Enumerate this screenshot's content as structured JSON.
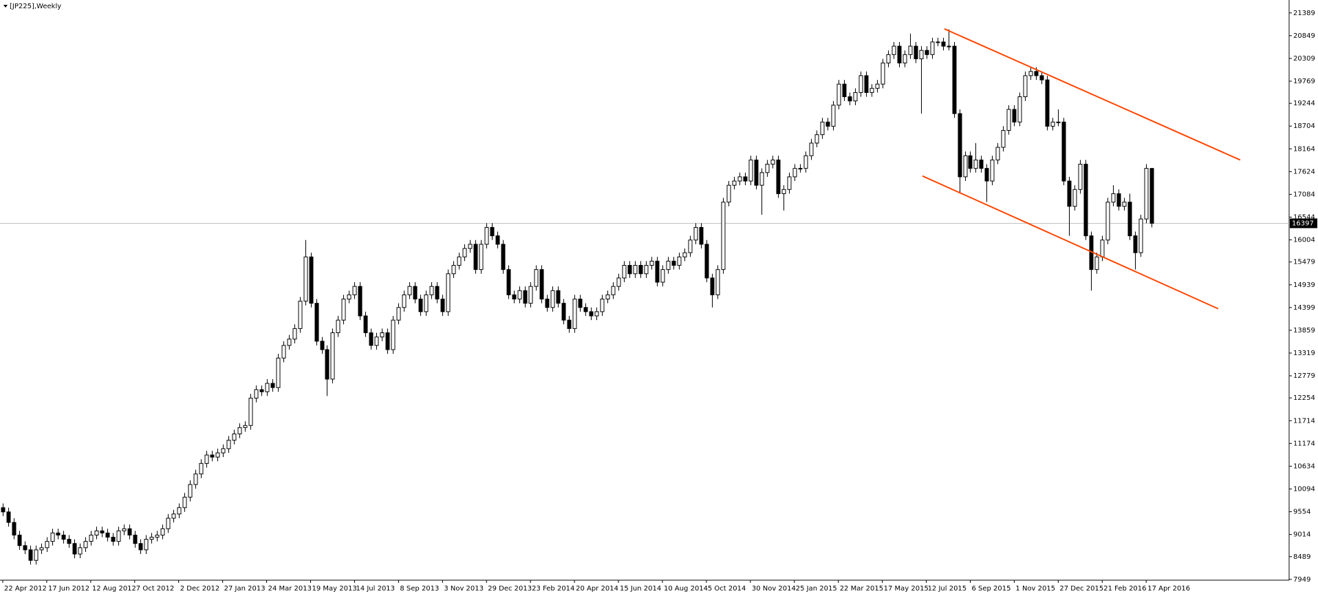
{
  "chart_data": {
    "type": "candlestick",
    "title": "[JP225],Weekly",
    "xlim": [
      -0.5,
      234
    ],
    "ylim": [
      7930,
      21630
    ],
    "yticks": [
      21389,
      20849,
      20309,
      19769,
      19244,
      18704,
      18164,
      17624,
      17084,
      16544,
      16004,
      15479,
      14939,
      14399,
      13859,
      13319,
      12779,
      12254,
      11714,
      11174,
      10634,
      10094,
      9554,
      9014,
      8489,
      7949
    ],
    "xticks": [
      {
        "value": 0,
        "label": "22 Apr 2012"
      },
      {
        "value": 8,
        "label": "17 Jun 2012"
      },
      {
        "value": 16,
        "label": "12 Aug 2012"
      },
      {
        "value": 24,
        "label": "7 Oct 2012"
      },
      {
        "value": 32,
        "label": "2 Dec 2012"
      },
      {
        "value": 40,
        "label": "27 Jan 2013"
      },
      {
        "value": 48,
        "label": "24 Mar 2013"
      },
      {
        "value": 56,
        "label": "19 May 2013"
      },
      {
        "value": 64,
        "label": "14 Jul 2013"
      },
      {
        "value": 72,
        "label": "8 Sep 2013"
      },
      {
        "value": 80,
        "label": "3 Nov 2013"
      },
      {
        "value": 88,
        "label": "29 Dec 2013"
      },
      {
        "value": 96,
        "label": "23 Feb 2014"
      },
      {
        "value": 104,
        "label": "20 Apr 2014"
      },
      {
        "value": 112,
        "label": "15 Jun 2014"
      },
      {
        "value": 120,
        "label": "10 Aug 2014"
      },
      {
        "value": 128,
        "label": "5 Oct 2014"
      },
      {
        "value": 136,
        "label": "30 Nov 2014"
      },
      {
        "value": 144,
        "label": "25 Jan 2015"
      },
      {
        "value": 152,
        "label": "22 Mar 2015"
      },
      {
        "value": 160,
        "label": "17 May 2015"
      },
      {
        "value": 168,
        "label": "12 Jul 2015"
      },
      {
        "value": 176,
        "label": "6 Sep 2015"
      },
      {
        "value": 184,
        "label": "1 Nov 2015"
      },
      {
        "value": 192,
        "label": "27 Dec 2015"
      },
      {
        "value": 200,
        "label": "21 Feb 2016"
      },
      {
        "value": 208,
        "label": "17 Apr 2016"
      }
    ],
    "up_color": "#ffffff",
    "down_color": "#000000",
    "outline_color": "#000000",
    "current_price": 16397,
    "current_price_line_color": "#c0c0c0",
    "trendlines": [
      {
        "color": "#ff4500",
        "points": [
          [
            171.3,
            21010
          ],
          [
            225.1,
            17900
          ]
        ]
      },
      {
        "color": "#ff4500",
        "points": [
          [
            167.3,
            17520
          ],
          [
            221.1,
            14370
          ]
        ]
      }
    ],
    "candles": [
      [
        9650,
        9750,
        9450,
        9550
      ],
      [
        9550,
        9650,
        9200,
        9300
      ],
      [
        9300,
        9400,
        8900,
        9000
      ],
      [
        9000,
        9100,
        8650,
        8750
      ],
      [
        8750,
        8850,
        8550,
        8650
      ],
      [
        8650,
        8750,
        8300,
        8400
      ],
      [
        8400,
        8750,
        8300,
        8650
      ],
      [
        8650,
        8800,
        8550,
        8700
      ],
      [
        8700,
        8950,
        8600,
        8850
      ],
      [
        8850,
        9150,
        8750,
        9050
      ],
      [
        9050,
        9150,
        8900,
        9000
      ],
      [
        9000,
        9100,
        8800,
        8900
      ],
      [
        8900,
        9000,
        8700,
        8800
      ],
      [
        8800,
        8900,
        8450,
        8550
      ],
      [
        8550,
        8800,
        8450,
        8700
      ],
      [
        8700,
        8950,
        8600,
        8850
      ],
      [
        8850,
        9100,
        8750,
        9000
      ],
      [
        9000,
        9200,
        8900,
        9100
      ],
      [
        9100,
        9200,
        8950,
        9050
      ],
      [
        9050,
        9150,
        8850,
        8950
      ],
      [
        8950,
        9050,
        8750,
        8850
      ],
      [
        8850,
        9200,
        8750,
        9100
      ],
      [
        9100,
        9250,
        9000,
        9150
      ],
      [
        9150,
        9250,
        8900,
        9000
      ],
      [
        9000,
        9100,
        8700,
        8800
      ],
      [
        8800,
        8900,
        8550,
        8650
      ],
      [
        8650,
        9000,
        8550,
        8900
      ],
      [
        8900,
        9050,
        8800,
        8950
      ],
      [
        8950,
        9100,
        8850,
        9000
      ],
      [
        9000,
        9250,
        8900,
        9150
      ],
      [
        9150,
        9500,
        9050,
        9400
      ],
      [
        9400,
        9600,
        9300,
        9500
      ],
      [
        9500,
        9750,
        9400,
        9650
      ],
      [
        9650,
        10000,
        9550,
        9900
      ],
      [
        9900,
        10300,
        9800,
        10200
      ],
      [
        10200,
        10550,
        10100,
        10450
      ],
      [
        10450,
        10800,
        10350,
        10700
      ],
      [
        10700,
        11000,
        10600,
        10900
      ],
      [
        10900,
        11000,
        10750,
        10850
      ],
      [
        10850,
        11050,
        10750,
        10950
      ],
      [
        10950,
        11150,
        10850,
        11050
      ],
      [
        11050,
        11350,
        10950,
        11250
      ],
      [
        11250,
        11500,
        11150,
        11400
      ],
      [
        11400,
        11650,
        11300,
        11550
      ],
      [
        11550,
        11700,
        11450,
        11600
      ],
      [
        11600,
        12350,
        11500,
        12250
      ],
      [
        12250,
        12550,
        12150,
        12450
      ],
      [
        12450,
        12550,
        12300,
        12400
      ],
      [
        12400,
        12700,
        12300,
        12600
      ],
      [
        12600,
        12700,
        12400,
        12500
      ],
      [
        12500,
        13300,
        12400,
        13200
      ],
      [
        13200,
        13600,
        13100,
        13500
      ],
      [
        13500,
        13750,
        13400,
        13650
      ],
      [
        13650,
        14000,
        13550,
        13900
      ],
      [
        13900,
        14650,
        13800,
        14550
      ],
      [
        14550,
        16000,
        14450,
        15600
      ],
      [
        15600,
        15700,
        14400,
        14500
      ],
      [
        14500,
        14600,
        13500,
        13600
      ],
      [
        13600,
        13700,
        13300,
        13400
      ],
      [
        13400,
        13500,
        12300,
        12700
      ],
      [
        12700,
        13900,
        12600,
        13800
      ],
      [
        13800,
        14200,
        13700,
        14100
      ],
      [
        14100,
        14700,
        14000,
        14600
      ],
      [
        14600,
        14800,
        14500,
        14700
      ],
      [
        14700,
        15000,
        14600,
        14900
      ],
      [
        14900,
        15000,
        14100,
        14200
      ],
      [
        14200,
        14300,
        13700,
        13800
      ],
      [
        13800,
        13900,
        13400,
        13500
      ],
      [
        13500,
        13800,
        13400,
        13700
      ],
      [
        13700,
        13900,
        13600,
        13800
      ],
      [
        13800,
        13900,
        13300,
        13400
      ],
      [
        13400,
        14200,
        13300,
        14100
      ],
      [
        14100,
        14500,
        14000,
        14400
      ],
      [
        14400,
        14800,
        14300,
        14700
      ],
      [
        14700,
        15000,
        14600,
        14900
      ],
      [
        14900,
        15000,
        14500,
        14600
      ],
      [
        14600,
        14700,
        14200,
        14300
      ],
      [
        14300,
        14800,
        14200,
        14700
      ],
      [
        14700,
        15000,
        14600,
        14900
      ],
      [
        14900,
        15000,
        14500,
        14600
      ],
      [
        14600,
        14700,
        14200,
        14300
      ],
      [
        14300,
        15300,
        14200,
        15200
      ],
      [
        15200,
        15500,
        15100,
        15400
      ],
      [
        15400,
        15700,
        15300,
        15600
      ],
      [
        15600,
        15900,
        15500,
        15800
      ],
      [
        15800,
        16000,
        15700,
        15900
      ],
      [
        15900,
        16000,
        15200,
        15300
      ],
      [
        15300,
        16000,
        15200,
        15900
      ],
      [
        15900,
        16400,
        15800,
        16300
      ],
      [
        16300,
        16400,
        16000,
        16100
      ],
      [
        16100,
        16200,
        15800,
        15900
      ],
      [
        15900,
        16000,
        15200,
        15300
      ],
      [
        15300,
        15400,
        14600,
        14700
      ],
      [
        14700,
        14800,
        14500,
        14600
      ],
      [
        14600,
        14900,
        14500,
        14800
      ],
      [
        14800,
        14900,
        14400,
        14500
      ],
      [
        14500,
        15000,
        14400,
        14900
      ],
      [
        14900,
        15400,
        14800,
        15300
      ],
      [
        15300,
        15400,
        14500,
        14600
      ],
      [
        14600,
        14700,
        14300,
        14400
      ],
      [
        14400,
        14900,
        14300,
        14800
      ],
      [
        14800,
        14900,
        14400,
        14500
      ],
      [
        14500,
        14600,
        14000,
        14100
      ],
      [
        14100,
        14200,
        13800,
        13900
      ],
      [
        13900,
        14700,
        13800,
        14600
      ],
      [
        14600,
        14700,
        14300,
        14400
      ],
      [
        14400,
        14500,
        14200,
        14300
      ],
      [
        14300,
        14400,
        14100,
        14200
      ],
      [
        14200,
        14400,
        14100,
        14300
      ],
      [
        14300,
        14700,
        14200,
        14600
      ],
      [
        14600,
        14800,
        14500,
        14700
      ],
      [
        14700,
        15000,
        14600,
        14900
      ],
      [
        14900,
        15200,
        14800,
        15100
      ],
      [
        15100,
        15500,
        15000,
        15400
      ],
      [
        15400,
        15500,
        15100,
        15200
      ],
      [
        15200,
        15500,
        15100,
        15400
      ],
      [
        15400,
        15500,
        15100,
        15200
      ],
      [
        15200,
        15500,
        15100,
        15400
      ],
      [
        15400,
        15600,
        15300,
        15500
      ],
      [
        15500,
        15600,
        14900,
        15000
      ],
      [
        15000,
        15400,
        14900,
        15300
      ],
      [
        15300,
        15600,
        15200,
        15500
      ],
      [
        15500,
        15600,
        15300,
        15400
      ],
      [
        15400,
        15700,
        15300,
        15600
      ],
      [
        15600,
        15800,
        15500,
        15700
      ],
      [
        15700,
        16100,
        15600,
        16000
      ],
      [
        16000,
        16400,
        15900,
        16300
      ],
      [
        16300,
        16400,
        15800,
        15900
      ],
      [
        15900,
        16000,
        15000,
        15100
      ],
      [
        15100,
        15200,
        14400,
        14700
      ],
      [
        14700,
        15400,
        14600,
        15300
      ],
      [
        15300,
        17000,
        15200,
        16900
      ],
      [
        16900,
        17400,
        16800,
        17300
      ],
      [
        17300,
        17500,
        17200,
        17400
      ],
      [
        17400,
        17600,
        17300,
        17500
      ],
      [
        17500,
        17600,
        17300,
        17400
      ],
      [
        17400,
        18000,
        17300,
        17900
      ],
      [
        17900,
        18000,
        17200,
        17300
      ],
      [
        17300,
        17700,
        16600,
        17600
      ],
      [
        17600,
        17900,
        17500,
        17800
      ],
      [
        17800,
        18000,
        17700,
        17900
      ],
      [
        17900,
        18000,
        17000,
        17100
      ],
      [
        17100,
        17300,
        16700,
        17200
      ],
      [
        17200,
        17600,
        17100,
        17500
      ],
      [
        17500,
        17800,
        17400,
        17700
      ],
      [
        17700,
        17800,
        17600,
        17700
      ],
      [
        17700,
        18100,
        17600,
        18000
      ],
      [
        18000,
        18400,
        17900,
        18300
      ],
      [
        18300,
        18600,
        18200,
        18500
      ],
      [
        18500,
        18900,
        18400,
        18800
      ],
      [
        18800,
        18900,
        18600,
        18700
      ],
      [
        18700,
        19300,
        18600,
        19200
      ],
      [
        19200,
        19800,
        19100,
        19700
      ],
      [
        19700,
        19800,
        19300,
        19400
      ],
      [
        19400,
        19500,
        19200,
        19300
      ],
      [
        19300,
        19600,
        19200,
        19500
      ],
      [
        19500,
        20000,
        19400,
        19900
      ],
      [
        19900,
        20000,
        19400,
        19500
      ],
      [
        19500,
        19700,
        19400,
        19600
      ],
      [
        19600,
        19800,
        19500,
        19700
      ],
      [
        19700,
        20300,
        19600,
        20200
      ],
      [
        20200,
        20500,
        20100,
        20400
      ],
      [
        20400,
        20700,
        20300,
        20600
      ],
      [
        20600,
        20700,
        20100,
        20200
      ],
      [
        20200,
        20500,
        20100,
        20400
      ],
      [
        20400,
        20900,
        20300,
        20600
      ],
      [
        20600,
        20700,
        20200,
        20300
      ],
      [
        20300,
        20600,
        19000,
        20500
      ],
      [
        20500,
        20600,
        20300,
        20400
      ],
      [
        20400,
        20800,
        20300,
        20700
      ],
      [
        20700,
        20800,
        20600,
        20700
      ],
      [
        20700,
        20800,
        20500,
        20600
      ],
      [
        20600,
        21000,
        20500,
        20600
      ],
      [
        20600,
        20700,
        18900,
        19000
      ],
      [
        19000,
        19100,
        17100,
        17500
      ],
      [
        17500,
        18100,
        17400,
        18000
      ],
      [
        18000,
        18100,
        17600,
        17700
      ],
      [
        17700,
        18300,
        17600,
        17900
      ],
      [
        17900,
        18000,
        17600,
        17700
      ],
      [
        17700,
        17800,
        16900,
        17400
      ],
      [
        17400,
        18000,
        17300,
        17900
      ],
      [
        17900,
        18300,
        17800,
        18200
      ],
      [
        18200,
        18700,
        18100,
        18600
      ],
      [
        18600,
        19200,
        18500,
        19100
      ],
      [
        19100,
        19200,
        18700,
        18800
      ],
      [
        18800,
        19500,
        18700,
        19400
      ],
      [
        19400,
        20000,
        19300,
        19900
      ],
      [
        19900,
        20100,
        19800,
        20000
      ],
      [
        20000,
        20100,
        19800,
        19900
      ],
      [
        19900,
        20000,
        19700,
        19800
      ],
      [
        19800,
        19900,
        18600,
        18700
      ],
      [
        18700,
        18900,
        18600,
        18800
      ],
      [
        18800,
        19100,
        18700,
        18800
      ],
      [
        18800,
        18900,
        17300,
        17400
      ],
      [
        17400,
        17500,
        16100,
        16800
      ],
      [
        16800,
        17300,
        16700,
        17200
      ],
      [
        17200,
        17900,
        17100,
        17800
      ],
      [
        17800,
        17900,
        16000,
        16100
      ],
      [
        16100,
        16200,
        14800,
        15300
      ],
      [
        15300,
        15700,
        15200,
        15600
      ],
      [
        15600,
        16100,
        15500,
        16000
      ],
      [
        16000,
        17000,
        15900,
        16900
      ],
      [
        16900,
        17300,
        16800,
        17100
      ],
      [
        17100,
        17200,
        16700,
        16800
      ],
      [
        16800,
        17000,
        16700,
        16900
      ],
      [
        16900,
        17100,
        16000,
        16100
      ],
      [
        16100,
        16200,
        15300,
        15700
      ],
      [
        15700,
        16600,
        15600,
        16500
      ],
      [
        16500,
        17800,
        16400,
        17700
      ],
      [
        17700,
        17700,
        16300,
        16397
      ]
    ]
  }
}
